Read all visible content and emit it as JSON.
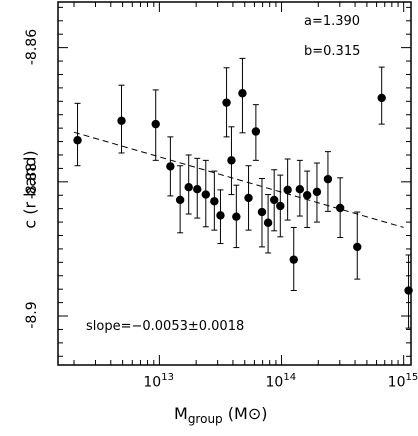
{
  "chart_data": {
    "type": "scatter",
    "title": "",
    "xlabel": {
      "main": "M",
      "sub": "group",
      "unit": "(M",
      "unit_symbol": "⊙",
      "unit_close": ")"
    },
    "ylabel": "c (r band)",
    "xscale": "log",
    "xlim": [
      12.17,
      15.06
    ],
    "ylim": [
      -8.9073,
      -8.8532
    ],
    "x_ticks": [
      {
        "label": "10",
        "exp": "13",
        "value": 13
      },
      {
        "label": "10",
        "exp": "14",
        "value": 14
      },
      {
        "label": "10",
        "exp": "15",
        "value": 15
      }
    ],
    "y_ticks": [
      {
        "label": "-8.86",
        "value": -8.86
      },
      {
        "label": "-8.88",
        "value": -8.88
      },
      {
        "label": "-8.9",
        "value": -8.9
      }
    ],
    "y_minor_step": 0.002,
    "x_minor_step": 0.1,
    "annotations": {
      "a": "a=1.390",
      "b": "b=0.315",
      "slope": "slope=−0.0053±0.0018"
    },
    "fit_line": {
      "x": [
        12.3,
        15.0
      ],
      "y": [
        -8.8726,
        -8.8868
      ],
      "style": "dashed"
    },
    "series": [
      {
        "marker": "filled-circle",
        "points": [
          {
            "x": 12.33,
            "y": -8.8738,
            "ylo": -8.8776,
            "yhi": -8.8683
          },
          {
            "x": 12.69,
            "y": -8.8709,
            "ylo": -8.8757,
            "yhi": -8.8656
          },
          {
            "x": 12.97,
            "y": -8.8714,
            "ylo": -8.8768,
            "yhi": -8.8663
          },
          {
            "x": 13.09,
            "y": -8.8777,
            "ylo": -8.8821,
            "yhi": -8.8733
          },
          {
            "x": 13.17,
            "y": -8.8827,
            "ylo": -8.8876,
            "yhi": -8.8776
          },
          {
            "x": 13.24,
            "y": -8.8808,
            "ylo": -8.8848,
            "yhi": -8.876
          },
          {
            "x": 13.31,
            "y": -8.8811,
            "ylo": -8.8854,
            "yhi": -8.8765
          },
          {
            "x": 13.38,
            "y": -8.8819,
            "ylo": -8.8867,
            "yhi": -8.8768
          },
          {
            "x": 13.45,
            "y": -8.8829,
            "ylo": -8.8872,
            "yhi": -8.8784
          },
          {
            "x": 13.5,
            "y": -8.885,
            "ylo": -8.8892,
            "yhi": -8.8812
          },
          {
            "x": 13.55,
            "y": -8.8682,
            "ylo": -8.8733,
            "yhi": -8.863
          },
          {
            "x": 13.59,
            "y": -8.8768,
            "ylo": -8.8819,
            "yhi": -8.8718
          },
          {
            "x": 13.63,
            "y": -8.8852,
            "ylo": -8.8898,
            "yhi": -8.8805
          },
          {
            "x": 13.68,
            "y": -8.8668,
            "ylo": -8.8727,
            "yhi": -8.8616
          },
          {
            "x": 13.73,
            "y": -8.8824,
            "ylo": -8.8872,
            "yhi": -8.8776
          },
          {
            "x": 13.79,
            "y": -8.8725,
            "ylo": -8.8768,
            "yhi": -8.8685
          },
          {
            "x": 13.84,
            "y": -8.8845,
            "ylo": -8.8897,
            "yhi": -8.8795
          },
          {
            "x": 13.89,
            "y": -8.8861,
            "ylo": -8.8906,
            "yhi": -8.8819
          },
          {
            "x": 13.94,
            "y": -8.8827,
            "ylo": -8.8873,
            "yhi": -8.8782
          },
          {
            "x": 13.99,
            "y": -8.8836,
            "ylo": -8.8882,
            "yhi": -8.879
          },
          {
            "x": 14.05,
            "y": -8.8812,
            "ylo": -8.8857,
            "yhi": -8.8766
          },
          {
            "x": 14.1,
            "y": -8.8916,
            "ylo": -8.8962,
            "yhi": -8.8868
          },
          {
            "x": 14.15,
            "y": -8.8811,
            "ylo": -8.8851,
            "yhi": -8.8768
          },
          {
            "x": 14.21,
            "y": -8.882,
            "ylo": -8.8868,
            "yhi": -8.8784
          },
          {
            "x": 14.29,
            "y": -8.8815,
            "ylo": -8.886,
            "yhi": -8.8772
          },
          {
            "x": 14.38,
            "y": -8.8796,
            "ylo": -8.8844,
            "yhi": -8.8755
          },
          {
            "x": 14.48,
            "y": -8.8839,
            "ylo": -8.8883,
            "yhi": -8.8794
          },
          {
            "x": 14.62,
            "y": -8.8897,
            "ylo": -8.8945,
            "yhi": -8.8845
          },
          {
            "x": 14.82,
            "y": -8.8675,
            "ylo": -8.8714,
            "yhi": -8.8629
          },
          {
            "x": 15.04,
            "y": -8.8962,
            "ylo": -8.9018,
            "yhi": -8.8909
          }
        ]
      }
    ]
  }
}
